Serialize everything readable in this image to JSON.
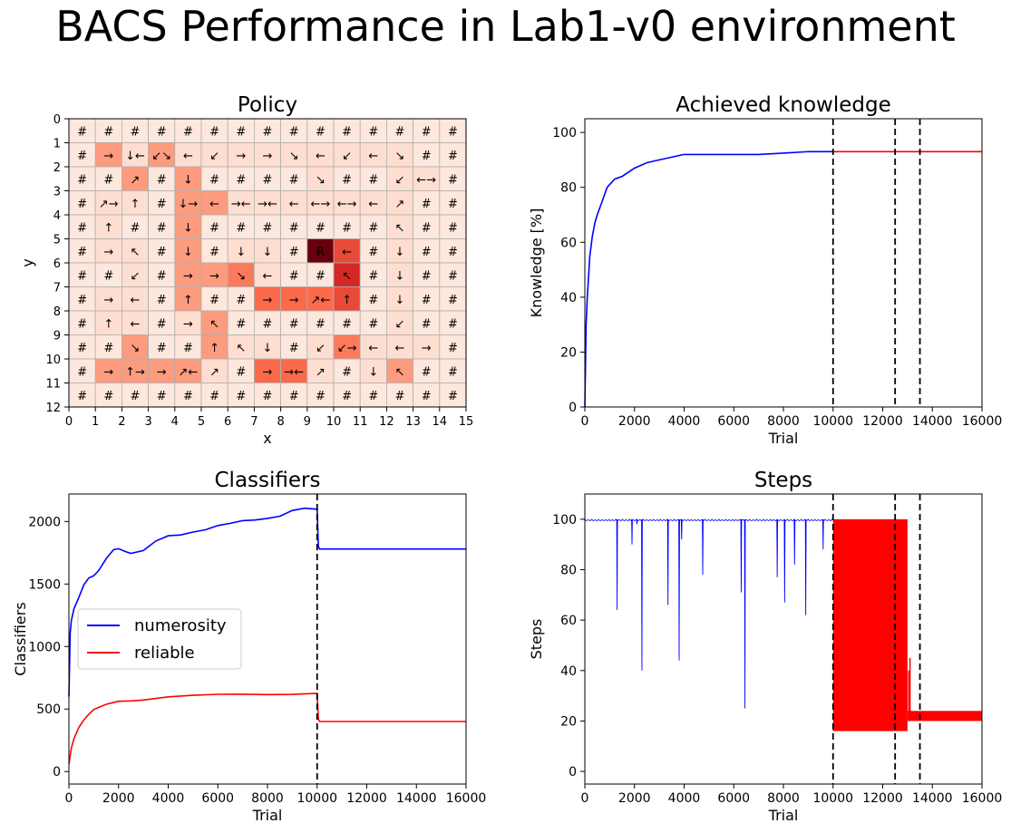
{
  "suptitle": "BACS Performance in Lab1-v0 environment",
  "chart_data": [
    {
      "type": "heatmap",
      "title": "Policy",
      "xlabel": "x",
      "ylabel": "y",
      "xlim": [
        0,
        15
      ],
      "ylim": [
        12,
        0
      ],
      "xticks": [
        "0",
        "1",
        "2",
        "3",
        "4",
        "5",
        "6",
        "7",
        "8",
        "9",
        "10",
        "11",
        "12",
        "13",
        "14",
        "15"
      ],
      "yticks": [
        "0",
        "1",
        "2",
        "3",
        "4",
        "5",
        "6",
        "7",
        "8",
        "9",
        "10",
        "11",
        "12"
      ],
      "colormap": "Reds",
      "grid": [
        [
          "#",
          "#",
          "#",
          "#",
          "#",
          "#",
          "#",
          "#",
          "#",
          "#",
          "#",
          "#",
          "#",
          "#",
          "#"
        ],
        [
          "#",
          "→",
          "↓←",
          "↙↘",
          "←",
          "↙",
          "→",
          "→",
          "↘",
          "←",
          "↙",
          "←",
          "↘",
          "#",
          "#"
        ],
        [
          "#",
          "#",
          "↗",
          "#",
          "↓",
          "#",
          "#",
          "#",
          "#",
          "↘",
          "#",
          "#",
          "↙",
          "←→",
          "#"
        ],
        [
          "#",
          "↗→",
          "↑",
          "#",
          "↓→",
          "←",
          "→←",
          "→←",
          "←",
          "←→",
          "←→",
          "←",
          "↗",
          "#",
          "#"
        ],
        [
          "#",
          "↑",
          "#",
          "#",
          "↓",
          "#",
          "#",
          "#",
          "#",
          "#",
          "#",
          "#",
          "↖",
          "#",
          "#"
        ],
        [
          "#",
          "→",
          "↖",
          "#",
          "↓",
          "#",
          "↓",
          "↓",
          "#",
          "R",
          "←",
          "#",
          "↓",
          "#",
          "#"
        ],
        [
          "#",
          "#",
          "↙",
          "#",
          "→",
          "→",
          "↘",
          "←",
          "#",
          "#",
          "↖",
          "#",
          "↓",
          "#",
          "#"
        ],
        [
          "#",
          "→",
          "←",
          "#",
          "↑",
          "#",
          "#",
          "→",
          "→",
          "↗←",
          "↑",
          "#",
          "↓",
          "#",
          "#"
        ],
        [
          "#",
          "↑",
          "←",
          "#",
          "→",
          "↖",
          "#",
          "#",
          "#",
          "#",
          "#",
          "#",
          "↙",
          "#",
          "#"
        ],
        [
          "#",
          "#",
          "↘",
          "#",
          "#",
          "↑",
          "↖",
          "↓",
          "#",
          "↙",
          "↙→",
          "←",
          "←",
          "→",
          "#"
        ],
        [
          "#",
          "→",
          "↑→",
          "→",
          "↗←",
          "↗",
          "#",
          "→",
          "→←",
          "↗",
          "#",
          "↓",
          "↖",
          "#",
          "#"
        ],
        [
          "#",
          "#",
          "#",
          "#",
          "#",
          "#",
          "#",
          "#",
          "#",
          "#",
          "#",
          "#",
          "#",
          "#",
          "#"
        ]
      ],
      "intensity": [
        [
          0.06,
          0.06,
          0.06,
          0.06,
          0.06,
          0.06,
          0.06,
          0.06,
          0.06,
          0.06,
          0.06,
          0.06,
          0.06,
          0.06,
          0.06
        ],
        [
          0.06,
          0.35,
          0.1,
          0.35,
          0.1,
          0.1,
          0.1,
          0.1,
          0.1,
          0.1,
          0.1,
          0.1,
          0.1,
          0.06,
          0.06
        ],
        [
          0.06,
          0.06,
          0.35,
          0.06,
          0.35,
          0.06,
          0.06,
          0.06,
          0.06,
          0.1,
          0.06,
          0.06,
          0.1,
          0.1,
          0.06
        ],
        [
          0.06,
          0.1,
          0.1,
          0.06,
          0.35,
          0.35,
          0.1,
          0.1,
          0.1,
          0.1,
          0.1,
          0.1,
          0.1,
          0.06,
          0.06
        ],
        [
          0.06,
          0.1,
          0.06,
          0.06,
          0.35,
          0.06,
          0.06,
          0.06,
          0.06,
          0.06,
          0.06,
          0.06,
          0.1,
          0.06,
          0.06
        ],
        [
          0.06,
          0.1,
          0.1,
          0.06,
          0.35,
          0.06,
          0.1,
          0.1,
          0.06,
          1.0,
          0.6,
          0.06,
          0.1,
          0.06,
          0.06
        ],
        [
          0.06,
          0.06,
          0.1,
          0.06,
          0.35,
          0.35,
          0.45,
          0.1,
          0.06,
          0.06,
          0.7,
          0.06,
          0.1,
          0.06,
          0.06
        ],
        [
          0.06,
          0.1,
          0.1,
          0.06,
          0.35,
          0.06,
          0.06,
          0.5,
          0.5,
          0.5,
          0.6,
          0.06,
          0.1,
          0.06,
          0.06
        ],
        [
          0.06,
          0.1,
          0.1,
          0.06,
          0.1,
          0.35,
          0.06,
          0.06,
          0.06,
          0.06,
          0.06,
          0.06,
          0.1,
          0.06,
          0.06
        ],
        [
          0.06,
          0.06,
          0.35,
          0.06,
          0.06,
          0.35,
          0.1,
          0.1,
          0.06,
          0.1,
          0.45,
          0.1,
          0.1,
          0.1,
          0.06
        ],
        [
          0.06,
          0.35,
          0.35,
          0.35,
          0.35,
          0.1,
          0.06,
          0.5,
          0.5,
          0.1,
          0.06,
          0.1,
          0.35,
          0.06,
          0.06
        ],
        [
          0.06,
          0.06,
          0.06,
          0.06,
          0.06,
          0.06,
          0.06,
          0.06,
          0.06,
          0.06,
          0.06,
          0.06,
          0.06,
          0.06,
          0.06
        ]
      ]
    },
    {
      "type": "line",
      "title": "Achieved knowledge",
      "xlabel": "Trial",
      "ylabel": "Knowledge [%]",
      "xlim": [
        0,
        16000
      ],
      "ylim": [
        0,
        105
      ],
      "xticks": [
        0,
        2000,
        4000,
        6000,
        8000,
        10000,
        12000,
        14000,
        16000
      ],
      "yticks": [
        0,
        20,
        40,
        60,
        80,
        100
      ],
      "vlines": [
        10000,
        12500,
        13500
      ],
      "series": [
        {
          "color": "#0000ff",
          "x": [
            0,
            50,
            100,
            200,
            300,
            400,
            500,
            700,
            900,
            1200,
            1500,
            2000,
            2500,
            3000,
            3500,
            4000,
            4500,
            5000,
            6000,
            7000,
            8000,
            9000,
            10000
          ],
          "y": [
            0,
            30,
            40,
            55,
            62,
            67,
            70,
            75,
            80,
            83,
            84,
            87,
            89,
            90,
            91,
            92,
            92,
            92,
            92,
            92,
            92.5,
            93,
            93
          ]
        },
        {
          "color": "#ff0000",
          "x": [
            10000,
            16000
          ],
          "y": [
            93,
            93
          ]
        }
      ]
    },
    {
      "type": "line",
      "title": "Classifiers",
      "xlabel": "Trial",
      "ylabel": "Classifiers",
      "xlim": [
        0,
        16000
      ],
      "ylim": [
        -100,
        2220
      ],
      "xticks": [
        0,
        2000,
        4000,
        6000,
        8000,
        10000,
        12000,
        14000,
        16000
      ],
      "yticks": [
        0,
        500,
        1000,
        1500,
        2000
      ],
      "vlines": [
        10000
      ],
      "legend_position": "center-left",
      "series": [
        {
          "name": "numerosity",
          "color": "#0000ff",
          "x": [
            0,
            50,
            100,
            200,
            400,
            600,
            800,
            1000,
            1200,
            1500,
            1800,
            2000,
            2300,
            2500,
            3000,
            3500,
            4000,
            4500,
            5000,
            5500,
            6000,
            6500,
            7000,
            7500,
            8000,
            8500,
            9000,
            9500,
            10000,
            10050,
            10100,
            16000
          ],
          "y": [
            600,
            1100,
            1200,
            1300,
            1400,
            1500,
            1550,
            1560,
            1600,
            1700,
            1780,
            1790,
            1760,
            1740,
            1760,
            1840,
            1890,
            1900,
            1920,
            1930,
            1960,
            1980,
            2010,
            2020,
            2030,
            2040,
            2080,
            2100,
            2100,
            1800,
            1780,
            1780
          ]
        },
        {
          "name": "reliable",
          "color": "#ff0000",
          "x": [
            0,
            50,
            100,
            200,
            400,
            600,
            800,
            1000,
            1500,
            2000,
            2500,
            3000,
            4000,
            5000,
            6000,
            7000,
            8000,
            9000,
            10000,
            10050,
            10100,
            16000
          ],
          "y": [
            60,
            120,
            180,
            260,
            360,
            420,
            460,
            490,
            530,
            560,
            570,
            580,
            600,
            605,
            610,
            615,
            620,
            625,
            630,
            420,
            400,
            400
          ]
        }
      ]
    },
    {
      "type": "line",
      "title": "Steps",
      "xlabel": "Trial",
      "ylabel": "Steps",
      "xlim": [
        0,
        16000
      ],
      "ylim": [
        -5,
        110
      ],
      "xticks": [
        0,
        2000,
        4000,
        6000,
        8000,
        10000,
        12000,
        14000,
        16000
      ],
      "yticks": [
        0,
        20,
        40,
        60,
        80,
        100
      ],
      "vlines": [
        10000,
        12500,
        13500
      ],
      "series": [
        {
          "color": "#0000ff",
          "baseline": 100,
          "dips": [
            [
              1300,
              64
            ],
            [
              1900,
              90
            ],
            [
              2100,
              98
            ],
            [
              2300,
              40
            ],
            [
              3350,
              66
            ],
            [
              3800,
              44
            ],
            [
              3900,
              92
            ],
            [
              4750,
              78
            ],
            [
              6300,
              71
            ],
            [
              6450,
              25
            ],
            [
              7750,
              77
            ],
            [
              8050,
              67
            ],
            [
              8450,
              82
            ],
            [
              8900,
              62
            ],
            [
              9600,
              88
            ]
          ]
        },
        {
          "color": "#ff0000",
          "band_low": 16,
          "band_high": 100,
          "band_x": [
            10000,
            13000
          ],
          "tail_low": 20,
          "tail_high": 24,
          "tail_x": [
            13000,
            16000
          ],
          "spikes": [
            [
              12800,
              48
            ],
            [
              13100,
              45
            ],
            [
              13050,
              40
            ]
          ]
        }
      ]
    }
  ]
}
